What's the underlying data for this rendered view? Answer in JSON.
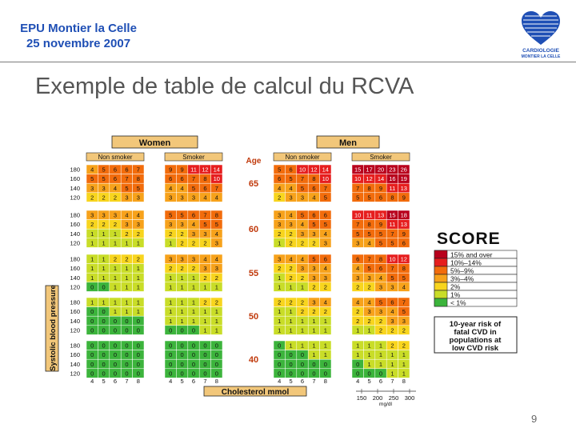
{
  "header": {
    "line1": "EPU Montier la Celle",
    "line2": "25 novembre 2007"
  },
  "logo": {
    "text1": "CARDIOLOGIE",
    "text2": "MONTIER LA CELLE"
  },
  "slide_title": "Exemple de table de calcul du RCVA",
  "page_number": "9",
  "chart_data": {
    "type": "heatmap",
    "title": "SCORE",
    "sex_labels": [
      "Women",
      "Men"
    ],
    "smoker_labels": [
      "Non smoker",
      "Smoker"
    ],
    "age_header": "Age",
    "ages": [
      "65",
      "60",
      "55",
      "50",
      "40"
    ],
    "sbp_rows": [
      "180",
      "160",
      "140",
      "120"
    ],
    "cholesterol_ticks": [
      "4",
      "5",
      "6",
      "7",
      "8"
    ],
    "ylabel": "Systolic blood pressure",
    "xlabel": "Cholesterol mmol",
    "mgdl_ticks": [
      "150",
      "200",
      "250",
      "300"
    ],
    "mgdl_unit": "mg/dl",
    "grid": [
      [
        [
          [
            4,
            5,
            6,
            6,
            7
          ],
          [
            5,
            5,
            6,
            7,
            8
          ],
          [
            3,
            3,
            4,
            5,
            5
          ],
          [
            2,
            2,
            2,
            3,
            3
          ]
        ],
        [
          [
            9,
            9,
            11,
            12,
            14
          ],
          [
            6,
            6,
            7,
            8,
            10
          ],
          [
            4,
            4,
            5,
            6,
            7
          ],
          [
            3,
            3,
            3,
            4,
            4
          ]
        ],
        [
          [
            5,
            6,
            10,
            12,
            14
          ],
          [
            6,
            5,
            7,
            8,
            10
          ],
          [
            4,
            4,
            5,
            6,
            7
          ],
          [
            2,
            3,
            3,
            4,
            5
          ]
        ],
        [
          [
            15,
            17,
            20,
            23,
            26
          ],
          [
            10,
            12,
            14,
            16,
            19
          ],
          [
            7,
            8,
            9,
            11,
            13
          ],
          [
            5,
            5,
            6,
            8,
            9
          ]
        ]
      ],
      [
        [
          [
            3,
            3,
            3,
            4,
            4
          ],
          [
            2,
            2,
            2,
            3,
            3
          ],
          [
            1,
            1,
            1,
            2,
            2
          ],
          [
            1,
            1,
            1,
            1,
            1
          ]
        ],
        [
          [
            5,
            5,
            6,
            7,
            8
          ],
          [
            3,
            3,
            4,
            5,
            5
          ],
          [
            2,
            2,
            3,
            3,
            4
          ],
          [
            1,
            2,
            2,
            2,
            3
          ]
        ],
        [
          [
            3,
            4,
            5,
            6,
            6
          ],
          [
            3,
            3,
            4,
            5,
            5
          ],
          [
            2,
            2,
            3,
            3,
            4
          ],
          [
            1,
            2,
            2,
            2,
            3
          ]
        ],
        [
          [
            10,
            11,
            13,
            15,
            18
          ],
          [
            7,
            8,
            9,
            11,
            13
          ],
          [
            5,
            5,
            5,
            7,
            9
          ],
          [
            3,
            4,
            5,
            5,
            6
          ]
        ]
      ],
      [
        [
          [
            1,
            1,
            2,
            2,
            2
          ],
          [
            1,
            1,
            1,
            1,
            1
          ],
          [
            1,
            1,
            1,
            1,
            1
          ],
          [
            0,
            0,
            1,
            1,
            1
          ]
        ],
        [
          [
            3,
            3,
            3,
            4,
            4
          ],
          [
            2,
            2,
            2,
            3,
            3
          ],
          [
            1,
            1,
            1,
            2,
            2
          ],
          [
            1,
            1,
            1,
            1,
            1
          ]
        ],
        [
          [
            3,
            4,
            4,
            5,
            6
          ],
          [
            2,
            2,
            3,
            3,
            4
          ],
          [
            1,
            2,
            2,
            3,
            3
          ],
          [
            1,
            1,
            1,
            2,
            2
          ]
        ],
        [
          [
            6,
            7,
            8,
            10,
            12
          ],
          [
            4,
            5,
            6,
            7,
            8
          ],
          [
            3,
            3,
            4,
            5,
            5
          ],
          [
            2,
            2,
            3,
            3,
            4
          ]
        ]
      ],
      [
        [
          [
            1,
            1,
            1,
            1,
            1
          ],
          [
            0,
            0,
            1,
            1,
            1
          ],
          [
            0,
            0,
            0,
            0,
            0
          ],
          [
            0,
            0,
            0,
            0,
            0
          ]
        ],
        [
          [
            1,
            1,
            1,
            2,
            2
          ],
          [
            1,
            1,
            1,
            1,
            1
          ],
          [
            1,
            1,
            1,
            1,
            1
          ],
          [
            0,
            0,
            0,
            1,
            1
          ]
        ],
        [
          [
            2,
            2,
            2,
            3,
            4
          ],
          [
            1,
            1,
            2,
            2,
            2
          ],
          [
            1,
            1,
            1,
            1,
            1
          ],
          [
            1,
            1,
            1,
            1,
            1
          ]
        ],
        [
          [
            4,
            4,
            5,
            6,
            7
          ],
          [
            2,
            3,
            3,
            4,
            5
          ],
          [
            2,
            2,
            2,
            3,
            3
          ],
          [
            1,
            1,
            2,
            2,
            2
          ]
        ]
      ],
      [
        [
          [
            0,
            0,
            0,
            0,
            0
          ],
          [
            0,
            0,
            0,
            0,
            0
          ],
          [
            0,
            0,
            0,
            0,
            0
          ],
          [
            0,
            0,
            0,
            0,
            0
          ]
        ],
        [
          [
            0,
            0,
            0,
            0,
            0
          ],
          [
            0,
            0,
            0,
            0,
            0
          ],
          [
            0,
            0,
            0,
            0,
            0
          ],
          [
            0,
            0,
            0,
            0,
            0
          ]
        ],
        [
          [
            0,
            1,
            1,
            1,
            1
          ],
          [
            0,
            0,
            0,
            1,
            1
          ],
          [
            0,
            0,
            0,
            0,
            0
          ],
          [
            0,
            0,
            0,
            0,
            0
          ]
        ],
        [
          [
            1,
            1,
            1,
            2,
            2
          ],
          [
            1,
            1,
            1,
            1,
            1
          ],
          [
            0,
            1,
            1,
            1,
            1
          ],
          [
            0,
            0,
            0,
            1,
            1
          ]
        ]
      ]
    ],
    "legend": [
      {
        "label": "15% and over",
        "color": "#b8001c"
      },
      {
        "label": "10%–14%",
        "color": "#e61e1e"
      },
      {
        "label": "5%–9%",
        "color": "#f26c0c"
      },
      {
        "label": "3%–4%",
        "color": "#f7a21b"
      },
      {
        "label": "2%",
        "color": "#f8d51e"
      },
      {
        "label": "1%",
        "color": "#c9dd28"
      },
      {
        "label": "< 1%",
        "color": "#3cb43c"
      }
    ],
    "note": [
      "10-year risk of",
      "fatal CVD in",
      "populations at",
      "low CVD risk"
    ]
  }
}
